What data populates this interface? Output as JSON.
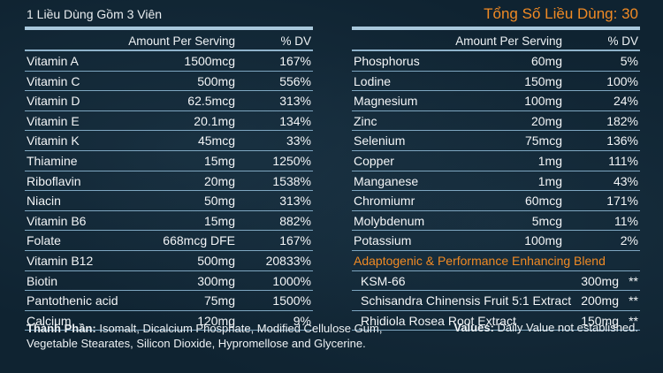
{
  "header": {
    "serving_size": "1 Liều Dùng Gồm 3 Viên",
    "total_servings": "Tổng Số Liều Dùng: 30"
  },
  "columns": {
    "amount": "Amount Per Serving",
    "dv": "% DV"
  },
  "left_rows": [
    {
      "name": "Vitamin A",
      "amount": "1500mcg",
      "dv": "167%"
    },
    {
      "name": "Vitamin C",
      "amount": "500mg",
      "dv": "556%"
    },
    {
      "name": "Vitamin D",
      "amount": "62.5mcg",
      "dv": "313%"
    },
    {
      "name": "Vitamin E",
      "amount": "20.1mg",
      "dv": "134%"
    },
    {
      "name": "Vitamin K",
      "amount": "45mcg",
      "dv": "33%"
    },
    {
      "name": "Thiamine",
      "amount": "15mg",
      "dv": "1250%"
    },
    {
      "name": "Riboflavin",
      "amount": "20mg",
      "dv": "1538%"
    },
    {
      "name": "Niacin",
      "amount": "50mg",
      "dv": "313%"
    },
    {
      "name": "Vitamin B6",
      "amount": "15mg",
      "dv": "882%"
    },
    {
      "name": "Folate",
      "amount": "668mcg DFE",
      "dv": "167%"
    },
    {
      "name": "Vitamin B12",
      "amount": "500mg",
      "dv": "20833%"
    },
    {
      "name": "Biotin",
      "amount": "300mg",
      "dv": "1000%"
    },
    {
      "name": "Pantothenic acid",
      "amount": "75mg",
      "dv": "1500%"
    },
    {
      "name": "Calcium",
      "amount": "120mg",
      "dv": "9%"
    }
  ],
  "right_rows": [
    {
      "name": "Phosphorus",
      "amount": "60mg",
      "dv": "5%"
    },
    {
      "name": "Lodine",
      "amount": "150mg",
      "dv": "100%"
    },
    {
      "name": "Magnesium",
      "amount": "100mg",
      "dv": "24%"
    },
    {
      "name": "Zinc",
      "amount": "20mg",
      "dv": "182%"
    },
    {
      "name": "Selenium",
      "amount": "75mcg",
      "dv": "136%"
    },
    {
      "name": "Copper",
      "amount": "1mg",
      "dv": "111%"
    },
    {
      "name": "Manganese",
      "amount": "1mg",
      "dv": "43%"
    },
    {
      "name": "Chromiumr",
      "amount": "60mcg",
      "dv": "171%"
    },
    {
      "name": "Molybdenum",
      "amount": "5mcg",
      "dv": "11%"
    },
    {
      "name": "Potassium",
      "amount": "100mg",
      "dv": "2%"
    }
  ],
  "blend": {
    "title": "Adaptogenic & Performance Enhancing Blend",
    "items": [
      {
        "name": "KSM-66",
        "amount": "300mg",
        "dv": "**"
      },
      {
        "name": "Schisandra Chinensis Fruit 5:1 Extract",
        "amount": "200mg",
        "dv": "**"
      },
      {
        "name": "Rhidiola Rosea Root Extract",
        "amount": "150mg",
        "dv": "**"
      }
    ]
  },
  "footer": {
    "ingredients_label": "Thành Phần:",
    "ingredients_text": "Isomalt, Dicalcium Phosphate, Modified Cellulose Gum, Vegetable Stearates, Silicon Dioxide, Hypromellose and Glycerine.",
    "values_label": "Values:",
    "values_text": "Daily Value not established."
  }
}
